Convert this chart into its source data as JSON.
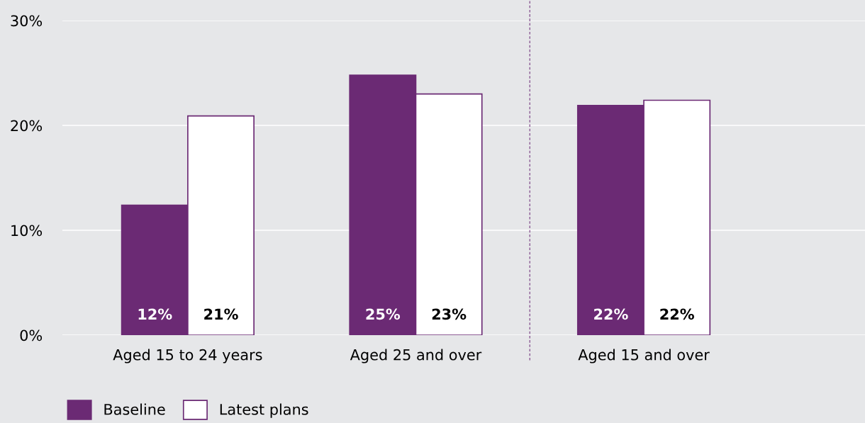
{
  "chart_data": {
    "type": "bar",
    "categories": [
      "Aged 15 to 24 years",
      "Aged 25 and over",
      "Aged 15 and over"
    ],
    "series": [
      {
        "name": "Baseline",
        "color": "#6b2a74",
        "values": [
          12.4,
          24.8,
          21.9
        ],
        "value_labels": [
          "12%",
          "25%",
          "22%"
        ]
      },
      {
        "name": "Latest plans",
        "color": "#ffffff",
        "values": [
          20.9,
          23.0,
          22.4
        ],
        "value_labels": [
          "21%",
          "23%",
          "22%"
        ]
      }
    ],
    "ylim": [
      0,
      30
    ],
    "yticks": [
      {
        "value": 0,
        "label": "0%"
      },
      {
        "value": 10,
        "label": "10%"
      },
      {
        "value": 20,
        "label": "20%"
      },
      {
        "value": 30,
        "label": "30%"
      }
    ],
    "grid": "y",
    "legend": "bottom left"
  }
}
